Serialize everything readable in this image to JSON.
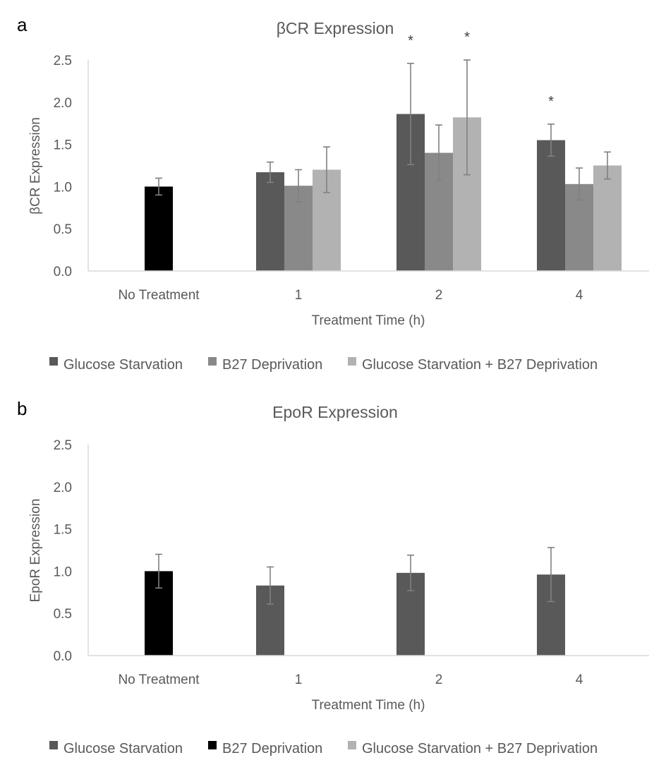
{
  "chart_data": [
    {
      "panel": "a",
      "type": "bar",
      "title": "βCR Expression",
      "xlabel": "Treatment Time (h)",
      "ylabel": "βCR Expression",
      "ylim": [
        0,
        2.5
      ],
      "yticks": [
        "0.0",
        "0.5",
        "1.0",
        "1.5",
        "2.0",
        "2.5"
      ],
      "categories": [
        "No Treatment",
        "1",
        "2",
        "4"
      ],
      "legend_position": "bottom",
      "series": [
        {
          "name": "Glucose Starvation",
          "color": "#595959",
          "values": [
            1.0,
            1.17,
            1.86,
            1.55
          ],
          "errors": [
            0.1,
            0.12,
            0.6,
            0.19
          ],
          "sig": [
            false,
            false,
            true,
            true
          ]
        },
        {
          "name": "B27 Deprivation",
          "color": "#898989",
          "values": [
            null,
            1.01,
            1.4,
            1.03
          ],
          "errors": [
            null,
            0.19,
            0.33,
            0.19
          ],
          "sig": [
            false,
            false,
            false,
            false
          ]
        },
        {
          "name": "Glucose Starvation + B27 Deprivation",
          "color": "#b2b2b2",
          "values": [
            null,
            1.2,
            1.82,
            1.25
          ],
          "errors": [
            null,
            0.27,
            0.68,
            0.16
          ],
          "sig": [
            false,
            false,
            true,
            false
          ]
        }
      ],
      "control_color": "#000000",
      "significance_marker": "*"
    },
    {
      "panel": "b",
      "type": "bar",
      "title": "EpoR Expression",
      "xlabel": "Treatment Time (h)",
      "ylabel": "EpoR Expression",
      "ylim": [
        0,
        2.5
      ],
      "yticks": [
        "0.0",
        "0.5",
        "1.0",
        "1.5",
        "2.0",
        "2.5"
      ],
      "categories": [
        "No Treatment",
        "1",
        "2",
        "4"
      ],
      "legend_position": "bottom",
      "series": [
        {
          "name": "Glucose Starvation",
          "color": "#595959",
          "values": [
            1.0,
            0.83,
            0.98,
            0.96
          ],
          "errors": [
            0.2,
            0.22,
            0.21,
            0.32
          ]
        },
        {
          "name": "B27 Deprivation",
          "color": "#000000",
          "values": [
            null,
            null,
            null,
            null
          ],
          "errors": [
            null,
            null,
            null,
            null
          ]
        },
        {
          "name": "Glucose Starvation + B27 Deprivation",
          "color": "#b2b2b2",
          "values": [
            null,
            null,
            null,
            null
          ],
          "errors": [
            null,
            null,
            null,
            null
          ]
        }
      ],
      "control_color": "#000000"
    }
  ]
}
